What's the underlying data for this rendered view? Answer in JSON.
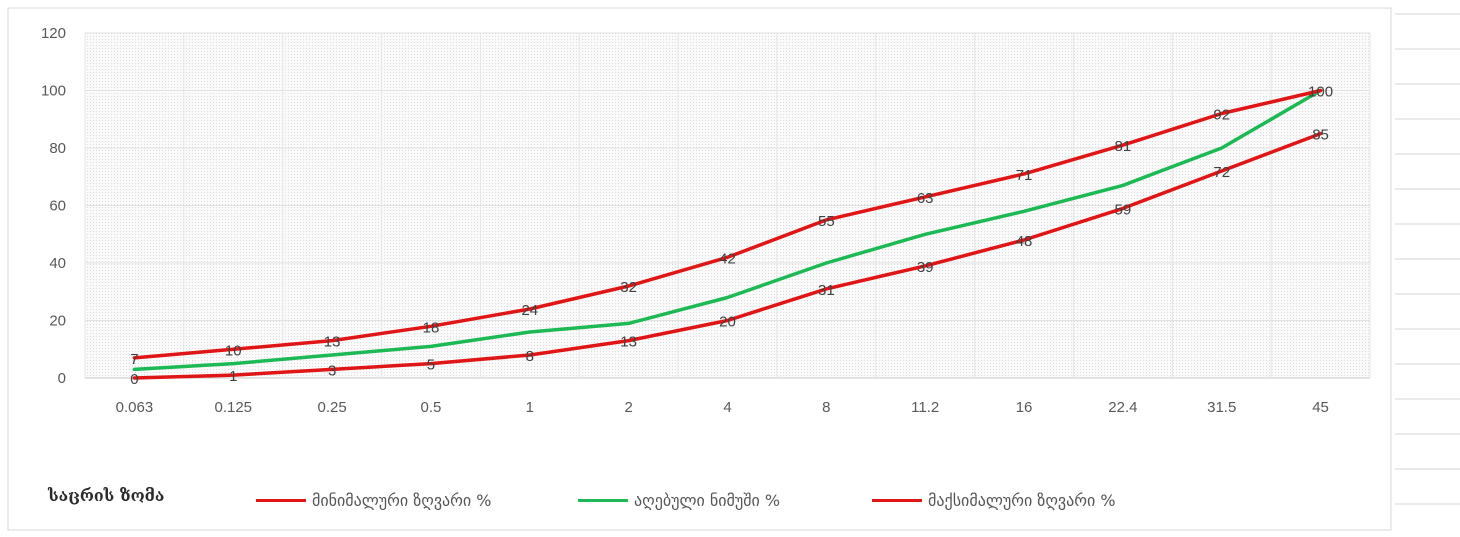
{
  "chart_data": {
    "type": "line",
    "categories": [
      "0.063",
      "0.125",
      "0.25",
      "0.5",
      "1",
      "2",
      "4",
      "8",
      "11.2",
      "16",
      "22.4",
      "31.5",
      "45"
    ],
    "xlabel": "საცრის ზომა",
    "ylabel": "",
    "ylim": [
      0,
      120
    ],
    "yticks": [
      "0",
      "20",
      "40",
      "60",
      "80",
      "100",
      "120"
    ],
    "grid": true,
    "legend_position": "bottom",
    "series": [
      {
        "name": "მინიმალური ზღვარი %",
        "color": "#e01515",
        "values": [
          0,
          1,
          3,
          5,
          8,
          13,
          20,
          31,
          39,
          48,
          59,
          72,
          85
        ],
        "labels": true
      },
      {
        "name": "აღებული ნიმუში %",
        "color": "#1db954",
        "values": [
          3,
          5,
          8,
          11,
          16,
          19,
          28,
          40,
          50,
          58,
          67,
          80,
          100
        ],
        "labels": false
      },
      {
        "name": "მაქსიმალური ზღვარი %",
        "color": "#e01515",
        "values": [
          7,
          10,
          13,
          18,
          24,
          32,
          42,
          55,
          63,
          71,
          81,
          92,
          100
        ],
        "labels": true
      }
    ]
  }
}
